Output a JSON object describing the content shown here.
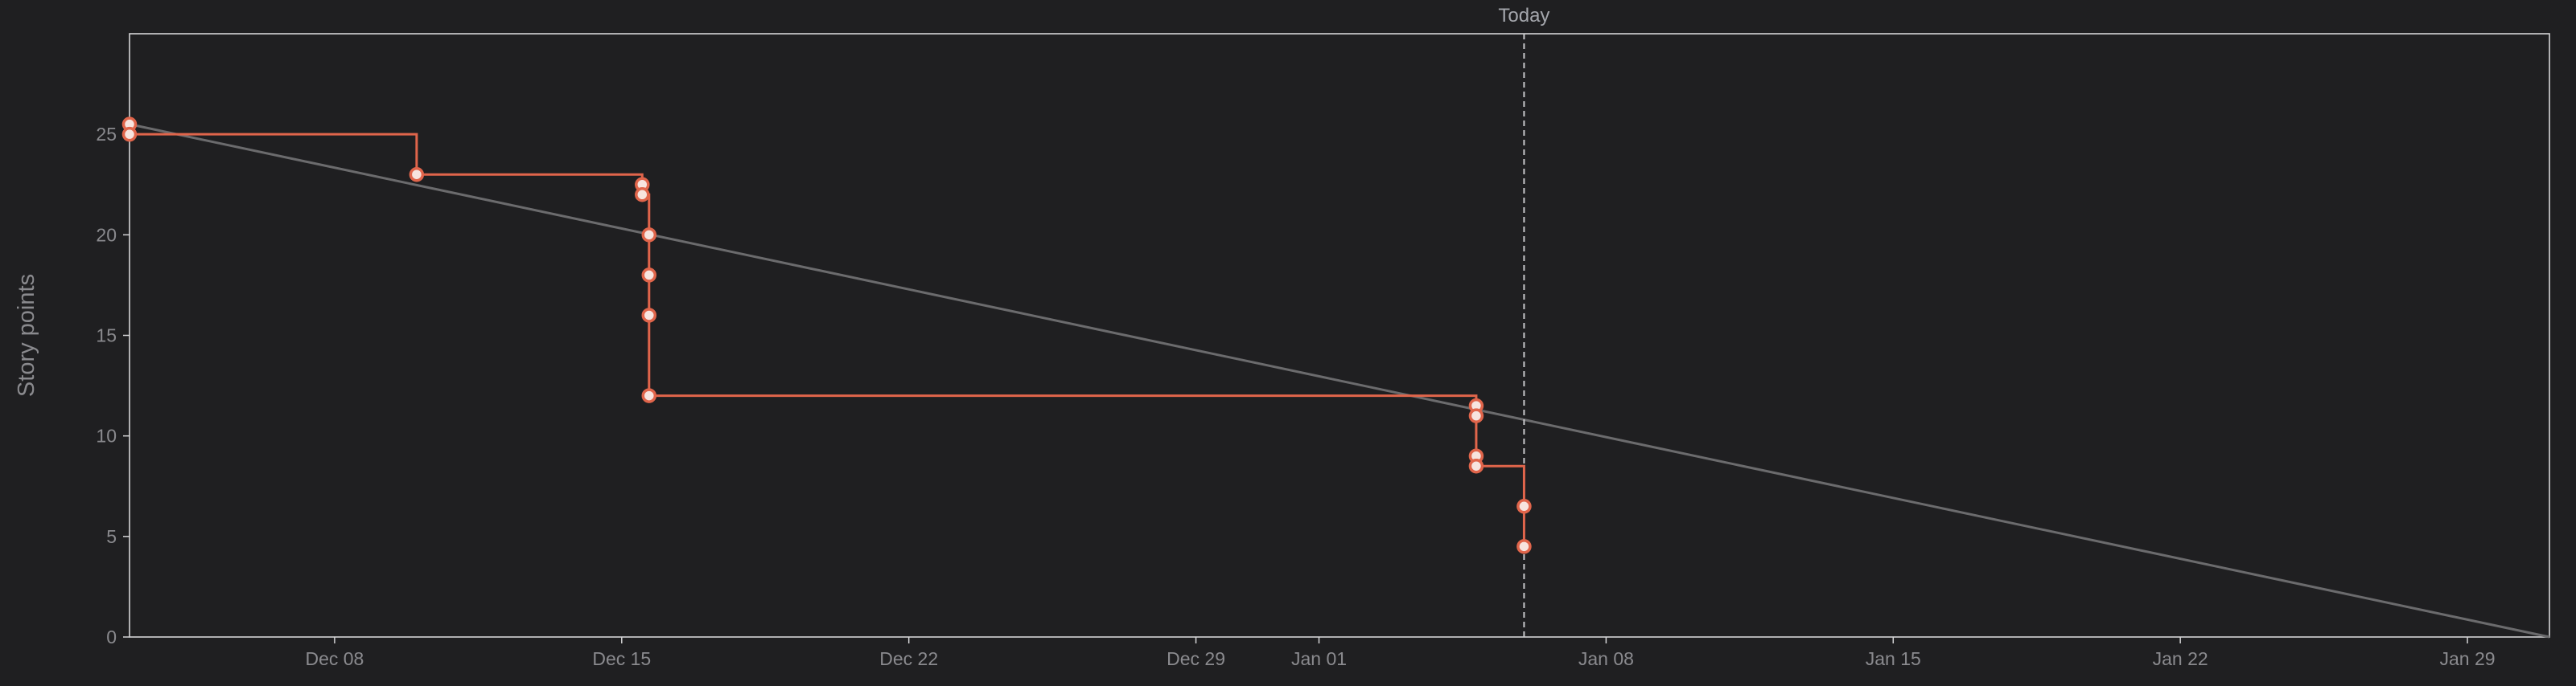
{
  "chart_data": {
    "type": "line",
    "ylabel": "Story points",
    "xlabel": "",
    "ylim": [
      0,
      30
    ],
    "xlim": [
      "2023-12-03",
      "2024-01-31"
    ],
    "yticks": [
      0,
      5,
      10,
      15,
      20,
      25
    ],
    "xticks": [
      {
        "label": "Dec 08",
        "date": "2023-12-08"
      },
      {
        "label": "Dec 15",
        "date": "2023-12-15"
      },
      {
        "label": "Dec 22",
        "date": "2023-12-22"
      },
      {
        "label": "Dec 29",
        "date": "2023-12-29"
      },
      {
        "label": "Jan 01",
        "date": "2024-01-01"
      },
      {
        "label": "Jan 08",
        "date": "2024-01-08"
      },
      {
        "label": "Jan 15",
        "date": "2024-01-15"
      },
      {
        "label": "Jan 22",
        "date": "2024-01-22"
      },
      {
        "label": "Jan 29",
        "date": "2024-01-29"
      }
    ],
    "today": {
      "label": "Today",
      "date": "2024-01-06"
    },
    "grid": false,
    "legend": "none",
    "series": [
      {
        "role": "ideal",
        "color": "#6b6b6d",
        "points": [
          {
            "x": "2023-12-03",
            "y": 25.5
          },
          {
            "x": "2024-01-31",
            "y": 0
          }
        ]
      },
      {
        "role": "actual",
        "color": "#e0654b",
        "step": true,
        "points": [
          {
            "x": "2023-12-03",
            "y": 25.5
          },
          {
            "x": "2023-12-03",
            "y": 25
          },
          {
            "x": "2023-12-10",
            "y": 23
          },
          {
            "x": "2023-12-15 12:00",
            "y": 22.5
          },
          {
            "x": "2023-12-15 12:00",
            "y": 22
          },
          {
            "x": "2023-12-15 16:00",
            "y": 20
          },
          {
            "x": "2023-12-15 16:00",
            "y": 18
          },
          {
            "x": "2023-12-15 16:00",
            "y": 16
          },
          {
            "x": "2023-12-15 16:00",
            "y": 12
          },
          {
            "x": "2024-01-04 20:00",
            "y": 11.5
          },
          {
            "x": "2024-01-04 20:00",
            "y": 11
          },
          {
            "x": "2024-01-04 20:00",
            "y": 9
          },
          {
            "x": "2024-01-04 20:00",
            "y": 8.5
          },
          {
            "x": "2024-01-06",
            "y": 6.5
          },
          {
            "x": "2024-01-06",
            "y": 4.5
          }
        ]
      }
    ]
  }
}
